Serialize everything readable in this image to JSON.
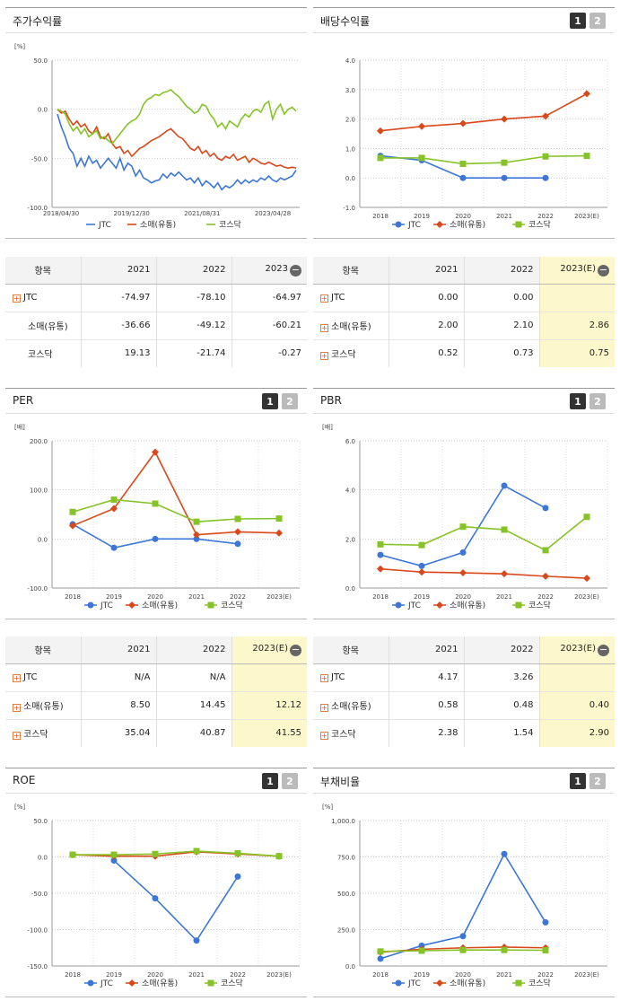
{
  "buttons": {
    "b1": "1",
    "b2": "2"
  },
  "colors": {
    "JTC": "#3b76d8",
    "소매(유통)": "#d9481a",
    "코스닥": "#86c327"
  },
  "minus_icon": "−",
  "plus_icon": "+",
  "panels": {
    "ret": {
      "title": "주가수익률"
    },
    "div": {
      "title": "배당수익률"
    },
    "per": {
      "title": "PER"
    },
    "pbr": {
      "title": "PBR"
    },
    "roe": {
      "title": "ROE"
    },
    "debt": {
      "title": "부채비율"
    }
  },
  "tables": {
    "ret": {
      "cols": [
        "항목",
        "2021",
        "2022",
        "2023"
      ],
      "rows": [
        {
          "name": "JTC",
          "plus": true,
          "v": [
            "-74.97",
            "-78.10",
            "-64.97"
          ]
        },
        {
          "name": "소매(유통)",
          "plus": false,
          "v": [
            "-36.66",
            "-49.12",
            "-60.21"
          ]
        },
        {
          "name": "코스닥",
          "plus": false,
          "v": [
            "19.13",
            "-21.74",
            "-0.27"
          ]
        }
      ]
    },
    "div": {
      "cols": [
        "항목",
        "2021",
        "2022",
        "2023(E)"
      ],
      "rows": [
        {
          "name": "JTC",
          "plus": true,
          "v": [
            "0.00",
            "0.00",
            ""
          ]
        },
        {
          "name": "소매(유통)",
          "plus": true,
          "v": [
            "2.00",
            "2.10",
            "2.86"
          ]
        },
        {
          "name": "코스닥",
          "plus": true,
          "v": [
            "0.52",
            "0.73",
            "0.75"
          ]
        }
      ]
    },
    "per": {
      "cols": [
        "항목",
        "2021",
        "2022",
        "2023(E)"
      ],
      "rows": [
        {
          "name": "JTC",
          "plus": true,
          "v": [
            "N/A",
            "N/A",
            ""
          ]
        },
        {
          "name": "소매(유통)",
          "plus": true,
          "v": [
            "8.50",
            "14.45",
            "12.12"
          ]
        },
        {
          "name": "코스닥",
          "plus": true,
          "v": [
            "35.04",
            "40.87",
            "41.55"
          ]
        }
      ]
    },
    "pbr": {
      "cols": [
        "항목",
        "2021",
        "2022",
        "2023(E)"
      ],
      "rows": [
        {
          "name": "JTC",
          "plus": true,
          "v": [
            "4.17",
            "3.26",
            ""
          ]
        },
        {
          "name": "소매(유통)",
          "plus": true,
          "v": [
            "0.58",
            "0.48",
            "0.40"
          ]
        },
        {
          "name": "코스닥",
          "plus": true,
          "v": [
            "2.38",
            "1.54",
            "2.90"
          ]
        }
      ]
    }
  },
  "chart_data": [
    {
      "id": "ret",
      "type": "line",
      "unit": "[%]",
      "yticks": [
        "50.0",
        "0.0",
        "-50.0",
        "-100.0"
      ],
      "ylim": [
        -100,
        50
      ],
      "xlabels": [
        "2018/04/30",
        "2019/12/30",
        "2021/08/31",
        "2023/04/28"
      ],
      "legend": [
        "JTC",
        "소매(유통)",
        "코스닥"
      ],
      "series": [
        {
          "name": "JTC",
          "values": [
            -5,
            -18,
            -28,
            -40,
            -45,
            -58,
            -50,
            -58,
            -48,
            -55,
            -52,
            -60,
            -55,
            -50,
            -55,
            -60,
            -50,
            -62,
            -55,
            -58,
            -68,
            -62,
            -70,
            -72,
            -75,
            -73,
            -72,
            -66,
            -70,
            -65,
            -68,
            -64,
            -68,
            -72,
            -70,
            -75,
            -70,
            -78,
            -73,
            -76,
            -80,
            -75,
            -82,
            -78,
            -80,
            -77,
            -72,
            -76,
            -72,
            -75,
            -72,
            -74,
            -70,
            -72,
            -68,
            -72,
            -74,
            -70,
            -72,
            -70,
            -68,
            -62
          ]
        },
        {
          "name": "소매(유통)",
          "values": [
            0,
            -4,
            -2,
            -10,
            -16,
            -12,
            -18,
            -15,
            -22,
            -25,
            -18,
            -28,
            -30,
            -25,
            -35,
            -40,
            -38,
            -45,
            -42,
            -48,
            -44,
            -40,
            -38,
            -35,
            -32,
            -30,
            -28,
            -25,
            -22,
            -20,
            -24,
            -28,
            -30,
            -35,
            -40,
            -42,
            -38,
            -45,
            -42,
            -48,
            -45,
            -50,
            -52,
            -48,
            -50,
            -46,
            -52,
            -50,
            -48,
            -54,
            -50,
            -52,
            -55,
            -56,
            -54,
            -56,
            -58,
            -57,
            -59,
            -60,
            -59,
            -60
          ]
        },
        {
          "name": "코스닥",
          "values": [
            0,
            -2,
            -5,
            -15,
            -22,
            -18,
            -25,
            -20,
            -28,
            -25,
            -22,
            -30,
            -28,
            -32,
            -35,
            -30,
            -25,
            -20,
            -15,
            -12,
            -10,
            -5,
            5,
            10,
            12,
            15,
            14,
            17,
            18,
            20,
            16,
            13,
            8,
            3,
            0,
            -4,
            -2,
            5,
            3,
            -5,
            -10,
            -18,
            -14,
            -20,
            -12,
            -15,
            -18,
            -10,
            -5,
            -8,
            -2,
            0,
            -3,
            5,
            8,
            -10,
            0,
            5,
            -5,
            0,
            2,
            -2
          ]
        }
      ]
    },
    {
      "id": "div",
      "type": "line",
      "unit": "",
      "yticks": [
        "4.0",
        "3.0",
        "2.0",
        "1.0",
        "0.0",
        "-1.0"
      ],
      "ylim": [
        -1,
        4
      ],
      "categories": [
        "2018",
        "2019",
        "2020",
        "2021",
        "2022",
        "2023(E)"
      ],
      "legend": [
        "JTC",
        "소매(유통)",
        "코스닥"
      ],
      "series": [
        {
          "name": "JTC",
          "values": [
            0.75,
            0.6,
            0.0,
            0.0,
            0.0,
            null
          ]
        },
        {
          "name": "소매(유통)",
          "values": [
            1.6,
            1.75,
            1.85,
            2.0,
            2.1,
            2.86
          ]
        },
        {
          "name": "코스닥",
          "values": [
            0.68,
            0.68,
            0.48,
            0.52,
            0.73,
            0.75
          ]
        }
      ]
    },
    {
      "id": "per",
      "type": "line",
      "unit": "[배]",
      "yticks": [
        "200.0",
        "100.0",
        "0.0",
        "-100.0"
      ],
      "ylim": [
        -100,
        200
      ],
      "categories": [
        "2018",
        "2019",
        "2020",
        "2021",
        "2022",
        "2023(E)"
      ],
      "legend": [
        "JTC",
        "소매(유통)",
        "코스닥"
      ],
      "series": [
        {
          "name": "JTC",
          "values": [
            30,
            -18,
            0,
            0,
            -10,
            null
          ]
        },
        {
          "name": "소매(유통)",
          "values": [
            27,
            62,
            177,
            8.5,
            14.45,
            12.12
          ]
        },
        {
          "name": "코스닥",
          "values": [
            55,
            80,
            72,
            35.04,
            40.87,
            41.55
          ]
        }
      ]
    },
    {
      "id": "pbr",
      "type": "line",
      "unit": "[배]",
      "yticks": [
        "6.0",
        "4.0",
        "2.0",
        "0.0"
      ],
      "ylim": [
        0,
        6
      ],
      "categories": [
        "2018",
        "2019",
        "2020",
        "2021",
        "2022",
        "2023(E)"
      ],
      "legend": [
        "JTC",
        "소매(유통)",
        "코스닥"
      ],
      "series": [
        {
          "name": "JTC",
          "values": [
            1.35,
            0.9,
            1.45,
            4.17,
            3.26,
            null
          ]
        },
        {
          "name": "소매(유통)",
          "values": [
            0.78,
            0.65,
            0.62,
            0.58,
            0.48,
            0.4
          ]
        },
        {
          "name": "코스닥",
          "values": [
            1.78,
            1.75,
            2.5,
            2.38,
            1.54,
            2.9
          ]
        }
      ]
    },
    {
      "id": "roe",
      "type": "line",
      "unit": "[%]",
      "yticks": [
        "50.0",
        "0.0",
        "-50.0",
        "-100.0",
        "-150.0"
      ],
      "ylim": [
        -150,
        50
      ],
      "categories": [
        "2018",
        "2019",
        "2020",
        "2021",
        "2022",
        "2023(E)"
      ],
      "legend": [
        "JTC",
        "소매(유통)",
        "코스닥"
      ],
      "series": [
        {
          "name": "JTC",
          "values": [
            null,
            -5,
            -57,
            -115,
            -27,
            null
          ]
        },
        {
          "name": "소매(유통)",
          "values": [
            3,
            1,
            1,
            7,
            4,
            1
          ]
        },
        {
          "name": "코스닥",
          "values": [
            3,
            3,
            4,
            8,
            5,
            1
          ]
        }
      ]
    },
    {
      "id": "debt",
      "type": "line",
      "unit": "[%]",
      "yticks": [
        "1,000.0",
        "750.0",
        "500.0",
        "250.0",
        "0.0"
      ],
      "ylim": [
        0,
        1000
      ],
      "categories": [
        "2018",
        "2019",
        "2020",
        "2021",
        "2022",
        "2023(E)"
      ],
      "legend": [
        "JTC",
        "소매(유통)",
        "코스닥"
      ],
      "series": [
        {
          "name": "JTC",
          "values": [
            50,
            140,
            205,
            770,
            300,
            null
          ]
        },
        {
          "name": "소매(유통)",
          "values": [
            95,
            115,
            125,
            130,
            125,
            null
          ]
        },
        {
          "name": "코스닥",
          "values": [
            100,
            105,
            110,
            110,
            108,
            null
          ]
        }
      ]
    }
  ]
}
